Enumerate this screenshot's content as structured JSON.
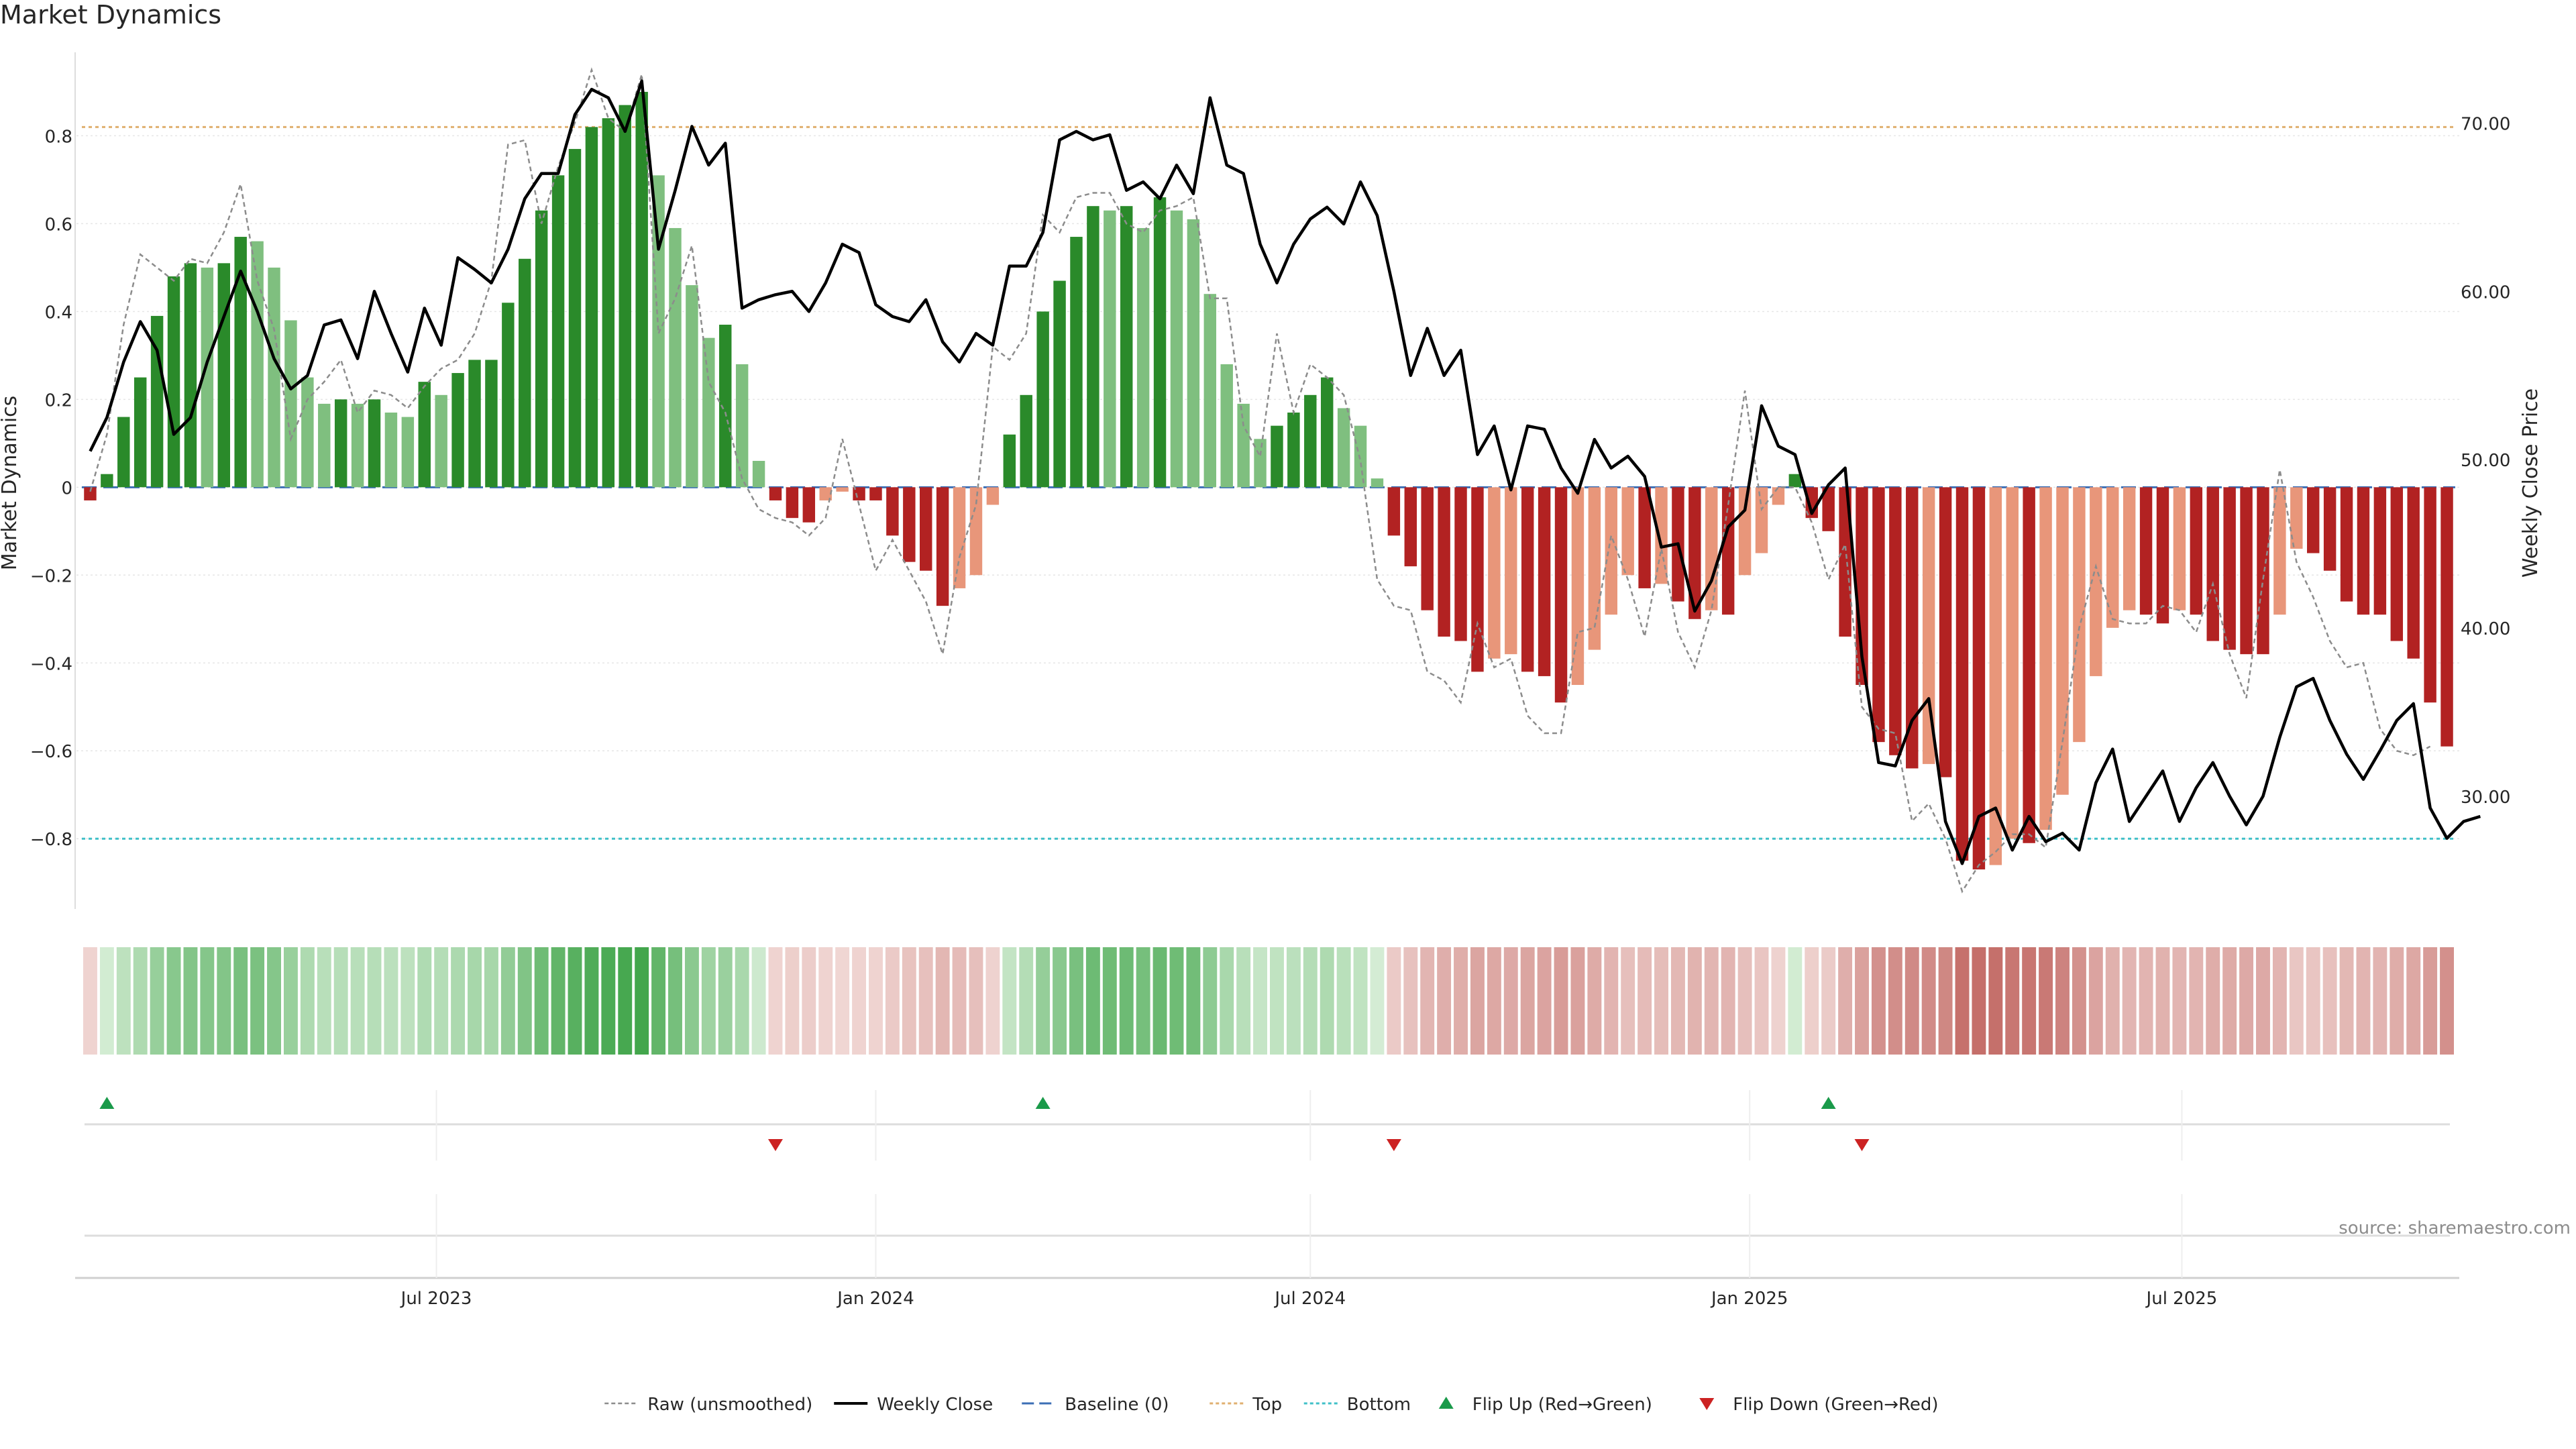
{
  "title": "Market Dynamics",
  "source": "source: sharemaestro.com",
  "chart_data": {
    "type": "bar",
    "x_start": "2023-02-06",
    "x_step_days": 7,
    "ylabel": "Market Dynamics",
    "y2label": "Weekly Close Price",
    "ylim": [
      -0.96,
      0.99
    ],
    "y2lim": [
      23.3,
      74.2
    ],
    "yticks": [
      "−0.8",
      "−0.6",
      "−0.4",
      "−0.2",
      "0",
      "0.2",
      "0.4",
      "0.6",
      "0.8"
    ],
    "y2ticks": [
      "30.00",
      "40.00",
      "50.00",
      "60.00",
      "70.00"
    ],
    "xticks": [
      {
        "date": "2023-07-01",
        "label": "Jul 2023"
      },
      {
        "date": "2024-01-01",
        "label": "Jan 2024"
      },
      {
        "date": "2024-07-01",
        "label": "Jul 2024"
      },
      {
        "date": "2025-01-01",
        "label": "Jan 2025"
      },
      {
        "date": "2025-07-01",
        "label": "Jul 2025"
      }
    ],
    "top": 0.82,
    "bottom": -0.8,
    "baseline": 0,
    "series": [
      {
        "name": "Market Dynamics",
        "type": "bar",
        "values": [
          -0.03,
          0.03,
          0.16,
          0.25,
          0.39,
          0.48,
          0.51,
          0.5,
          0.51,
          0.57,
          0.56,
          0.5,
          0.38,
          0.25,
          0.19,
          0.2,
          0.19,
          0.2,
          0.17,
          0.16,
          0.24,
          0.21,
          0.26,
          0.29,
          0.29,
          0.42,
          0.52,
          0.63,
          0.71,
          0.77,
          0.82,
          0.84,
          0.87,
          0.9,
          0.71,
          0.59,
          0.46,
          0.34,
          0.37,
          0.28,
          0.06,
          -0.03,
          -0.07,
          -0.08,
          -0.03,
          -0.01,
          -0.03,
          -0.03,
          -0.11,
          -0.17,
          -0.19,
          -0.27,
          -0.23,
          -0.2,
          -0.04,
          0.12,
          0.21,
          0.4,
          0.47,
          0.57,
          0.64,
          0.63,
          0.64,
          0.59,
          0.66,
          0.63,
          0.61,
          0.44,
          0.28,
          0.19,
          0.11,
          0.14,
          0.17,
          0.21,
          0.25,
          0.18,
          0.14,
          0.02,
          -0.11,
          -0.18,
          -0.28,
          -0.34,
          -0.35,
          -0.42,
          -0.39,
          -0.38,
          -0.42,
          -0.43,
          -0.49,
          -0.45,
          -0.37,
          -0.29,
          -0.2,
          -0.23,
          -0.22,
          -0.26,
          -0.3,
          -0.28,
          -0.29,
          -0.2,
          -0.15,
          -0.04,
          0.03,
          -0.07,
          -0.1,
          -0.34,
          -0.45,
          -0.58,
          -0.61,
          -0.64,
          -0.63,
          -0.66,
          -0.85,
          -0.87,
          -0.86,
          -0.8,
          -0.81,
          -0.78,
          -0.7,
          -0.58,
          -0.43,
          -0.32,
          -0.28,
          -0.29,
          -0.31,
          -0.28,
          -0.29,
          -0.35,
          -0.37,
          -0.38,
          -0.38,
          -0.29,
          -0.14,
          -0.15,
          -0.19,
          -0.26,
          -0.29,
          -0.29,
          -0.35,
          -0.39,
          -0.49,
          -0.59
        ]
      },
      {
        "name": "Raw (unsmoothed)",
        "type": "line",
        "values": [
          -0.01,
          0.12,
          0.37,
          0.53,
          0.5,
          0.47,
          0.52,
          0.51,
          0.58,
          0.69,
          0.47,
          0.36,
          0.11,
          0.2,
          0.24,
          0.29,
          0.17,
          0.22,
          0.21,
          0.18,
          0.23,
          0.27,
          0.29,
          0.35,
          0.47,
          0.78,
          0.79,
          0.6,
          0.73,
          0.83,
          0.95,
          0.84,
          0.81,
          0.94,
          0.35,
          0.43,
          0.55,
          0.24,
          0.17,
          0.02,
          -0.05,
          -0.07,
          -0.08,
          -0.11,
          -0.07,
          0.11,
          -0.04,
          -0.19,
          -0.12,
          -0.19,
          -0.26,
          -0.38,
          -0.16,
          -0.04,
          0.32,
          0.29,
          0.35,
          0.62,
          0.58,
          0.66,
          0.67,
          0.67,
          0.6,
          0.58,
          0.63,
          0.64,
          0.66,
          0.43,
          0.43,
          0.14,
          0.07,
          0.35,
          0.17,
          0.28,
          0.25,
          0.21,
          0.06,
          -0.21,
          -0.27,
          -0.28,
          -0.42,
          -0.44,
          -0.49,
          -0.31,
          -0.41,
          -0.39,
          -0.52,
          -0.56,
          -0.56,
          -0.33,
          -0.32,
          -0.11,
          -0.21,
          -0.34,
          -0.14,
          -0.33,
          -0.41,
          -0.28,
          -0.04,
          0.22,
          -0.05,
          0.0,
          0.0,
          -0.08,
          -0.21,
          -0.13,
          -0.5,
          -0.55,
          -0.56,
          -0.76,
          -0.72,
          -0.8,
          -0.92,
          -0.86,
          -0.83,
          -0.79,
          -0.79,
          -0.82,
          -0.58,
          -0.32,
          -0.18,
          -0.3,
          -0.31,
          -0.31,
          -0.27,
          -0.28,
          -0.33,
          -0.22,
          -0.38,
          -0.48,
          -0.21,
          0.04,
          -0.17,
          -0.25,
          -0.35,
          -0.41,
          -0.4,
          -0.55,
          -0.6,
          -0.61,
          -0.59
        ]
      },
      {
        "name": "Weekly Close",
        "type": "line",
        "axis": "y2",
        "values": [
          50.5,
          52.5,
          55.8,
          58.2,
          56.5,
          51.5,
          52.5,
          55.8,
          58.5,
          61.2,
          58.8,
          56.0,
          54.2,
          55.0,
          58.0,
          58.3,
          56.0,
          60.0,
          57.5,
          55.2,
          59.0,
          56.8,
          62.0,
          61.3,
          60.5,
          62.5,
          65.5,
          67.0,
          67.0,
          70.5,
          72.0,
          71.5,
          69.5,
          72.5,
          62.5,
          66.0,
          69.8,
          67.5,
          68.8,
          59.0,
          59.5,
          59.8,
          60.0,
          58.8,
          60.5,
          62.8,
          62.3,
          59.2,
          58.5,
          58.2,
          59.5,
          57.0,
          55.8,
          57.5,
          56.8,
          61.5,
          61.5,
          63.5,
          69.0,
          69.5,
          69.0,
          69.3,
          66.0,
          66.5,
          65.5,
          67.5,
          65.8,
          71.5,
          67.5,
          67.0,
          62.8,
          60.5,
          62.8,
          64.3,
          65.0,
          64.0,
          66.5,
          64.5,
          60.0,
          55.0,
          57.8,
          55.0,
          56.5,
          50.3,
          52.0,
          48.2,
          52.0,
          51.8,
          49.5,
          48.0,
          51.2,
          49.5,
          50.2,
          49.0,
          44.8,
          45.0,
          41.0,
          42.8,
          46.0,
          47.0,
          53.2,
          50.8,
          50.3,
          46.8,
          48.5,
          49.5,
          38.3,
          32.0,
          31.8,
          34.5,
          35.8,
          28.5,
          26.0,
          28.8,
          29.3,
          26.8,
          28.8,
          27.3,
          27.8,
          26.8,
          30.8,
          32.8,
          28.5,
          30.0,
          31.5,
          28.5,
          30.5,
          32.0,
          30.0,
          28.3,
          30.0,
          33.5,
          36.5,
          37.0,
          34.5,
          32.5,
          31.0,
          32.7,
          34.5,
          35.5,
          29.3,
          27.5,
          28.5,
          28.8
        ]
      },
      {
        "name": "Baseline (0)",
        "type": "hline",
        "value": 0
      },
      {
        "name": "Top",
        "type": "hline",
        "value": 0.82
      },
      {
        "name": "Bottom",
        "type": "hline",
        "value": -0.8
      },
      {
        "name": "Flip Up (Red→Green)",
        "type": "marker",
        "indices": [
          1,
          57,
          104
        ]
      },
      {
        "name": "Flip Down (Green→Red)",
        "type": "marker",
        "indices": [
          41,
          78,
          106
        ]
      }
    ],
    "legend": [
      {
        "label": "Raw (unsmoothed)"
      },
      {
        "label": "Weekly Close"
      },
      {
        "label": "Baseline (0)"
      },
      {
        "label": "Top"
      },
      {
        "label": "Bottom"
      },
      {
        "label": "Flip Up (Red→Green)"
      },
      {
        "label": "Flip Down (Green→Red)"
      }
    ],
    "legend_position": "bottom",
    "grid": true,
    "colors": {
      "pos_strong": "#2a8a2a",
      "pos_weak": "#7fbf7f",
      "neg_strong": "#b22222",
      "neg_weak": "#e8967a",
      "raw": "#8c8c8c",
      "close": "#000000",
      "baseline": "#3b6eb5",
      "top": "#e0b070",
      "bottom": "#40c0c8",
      "flip_up": "#1a9a4a",
      "flip_down": "#cc2222"
    }
  }
}
